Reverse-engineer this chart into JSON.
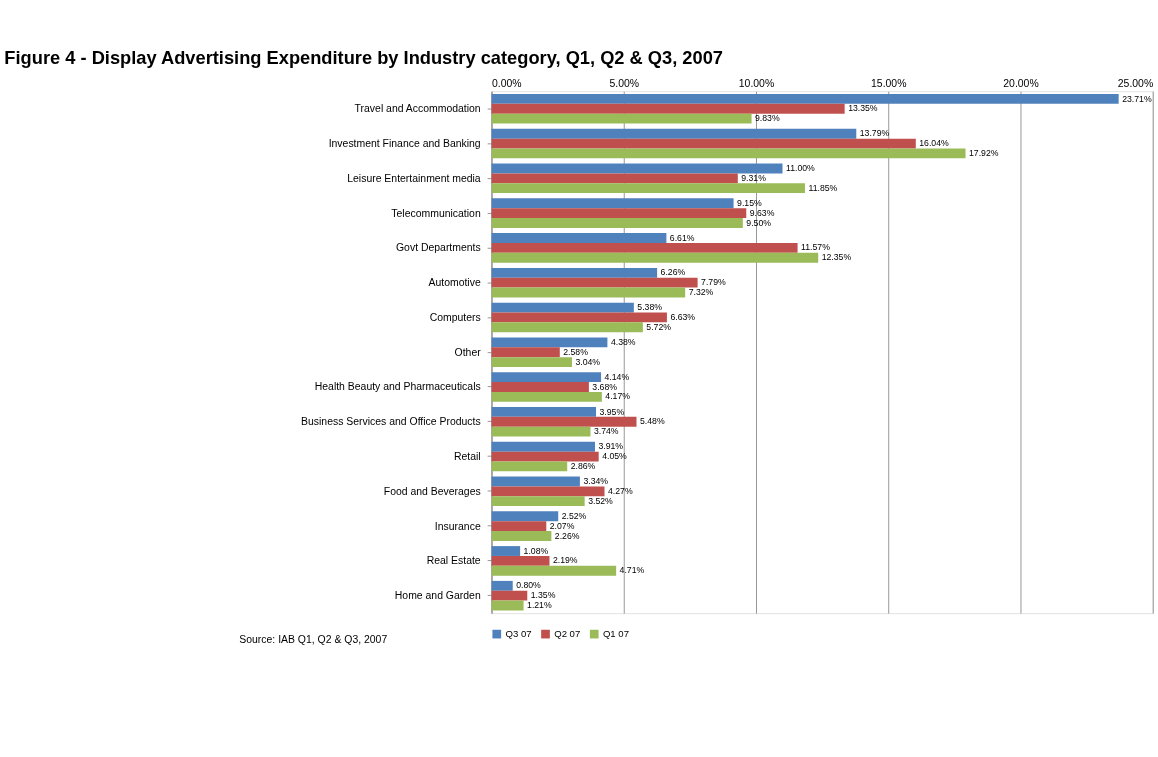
{
  "chart_data": {
    "type": "bar",
    "orientation": "horizontal",
    "title": "Figure 4 - Display Advertising Expenditure by Industry category, Q1, Q2 & Q3, 2007",
    "categories": [
      "Travel and Accommodation",
      "Investment Finance and Banking",
      "Leisure Entertainment media",
      "Telecommunication",
      "Govt Departments",
      "Automotive",
      "Computers",
      "Other",
      "Health Beauty and Pharmaceuticals",
      "Business Services and Office Products",
      "Retail",
      "Food and Beverages",
      "Insurance",
      "Real Estate",
      "Home and Garden"
    ],
    "series": [
      {
        "name": "Q3 07",
        "color": "#4f81bd",
        "values": [
          23.71,
          13.79,
          11.0,
          9.15,
          6.61,
          6.26,
          5.38,
          4.38,
          4.14,
          3.95,
          3.91,
          3.34,
          2.52,
          1.08,
          0.8
        ],
        "value_labels": [
          "23.71%",
          "13.79%",
          "11.00%",
          "9.15%",
          "6.61%",
          "6.26%",
          "5.38%",
          "4.38%",
          "4.14%",
          "3.95%",
          "3.91%",
          "3.34%",
          "2.52%",
          "1.08%",
          "0.80%"
        ]
      },
      {
        "name": "Q2 07",
        "color": "#c0504d",
        "values": [
          13.35,
          16.04,
          9.31,
          9.63,
          11.57,
          7.79,
          6.63,
          2.58,
          3.68,
          5.48,
          4.05,
          4.27,
          2.07,
          2.19,
          1.35
        ],
        "value_labels": [
          "13.35%",
          "16.04%",
          "9.31%",
          "9.63%",
          "11.57%",
          "7.79%",
          "6.63%",
          "2.58%",
          "3.68%",
          "5.48%",
          "4.05%",
          "4.27%",
          "2.07%",
          "2.19%",
          "1.35%"
        ]
      },
      {
        "name": "Q1 07",
        "color": "#9bbb59",
        "values": [
          9.83,
          17.92,
          11.85,
          9.5,
          12.35,
          7.32,
          5.72,
          3.04,
          4.17,
          3.74,
          2.86,
          3.52,
          2.26,
          4.71,
          1.21
        ],
        "value_labels": [
          "9.83%",
          "17.92%",
          "11.85%",
          "9.50%",
          "12.35%",
          "7.32%",
          "5.72%",
          "3.04%",
          "4.17%",
          "3.74%",
          "2.86%",
          "3.52%",
          "2.26%",
          "4.71%",
          "1.21%"
        ]
      }
    ],
    "xlim": [
      0,
      25
    ],
    "xticks": [
      {
        "value": 0,
        "label": "0.00%"
      },
      {
        "value": 5,
        "label": "5.00%"
      },
      {
        "value": 10,
        "label": "10.00%"
      },
      {
        "value": 15,
        "label": "15.00%"
      },
      {
        "value": 20,
        "label": "20.00%"
      },
      {
        "value": 25,
        "label": "25.00%"
      }
    ],
    "grid": "x",
    "legend": "bottom",
    "annotations": [
      "Source: IAB Q1, Q2 & Q3, 2007"
    ]
  }
}
